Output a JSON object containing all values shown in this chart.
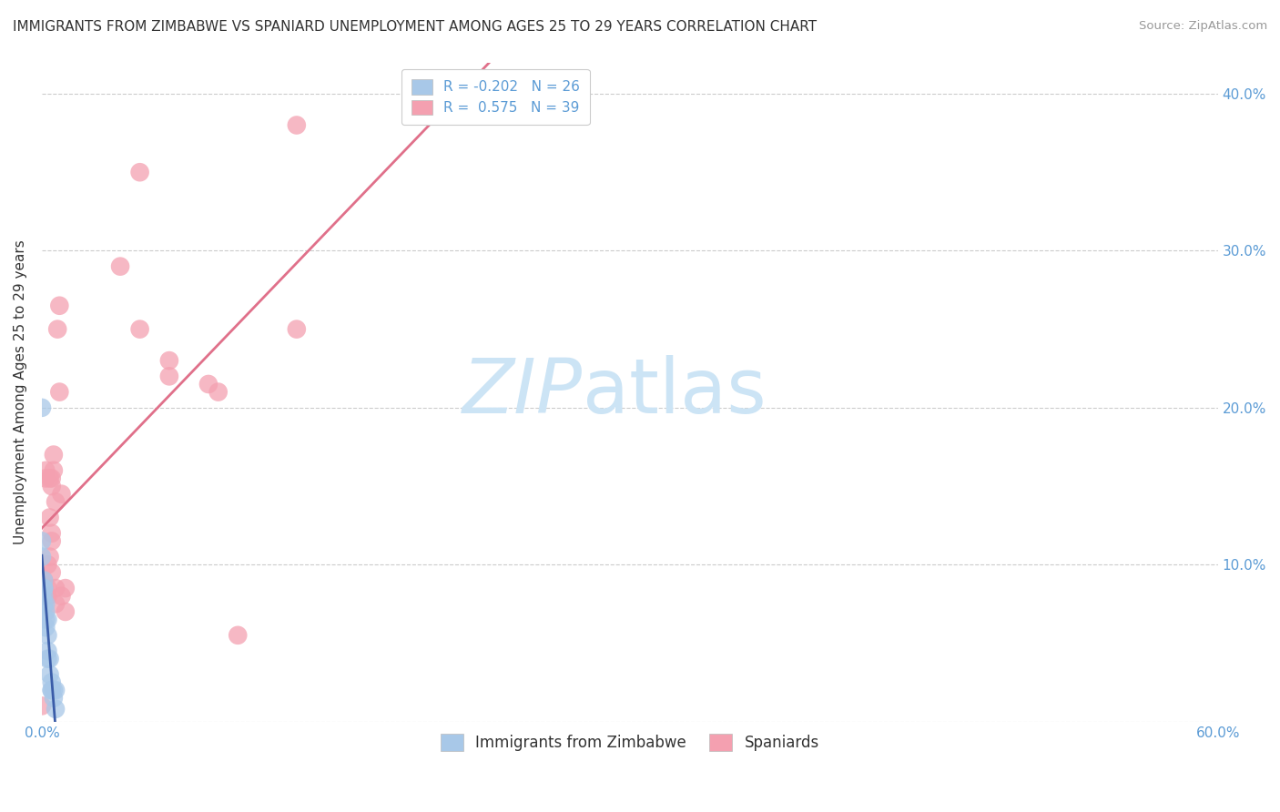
{
  "title": "IMMIGRANTS FROM ZIMBABWE VS SPANIARD UNEMPLOYMENT AMONG AGES 25 TO 29 YEARS CORRELATION CHART",
  "source": "Source: ZipAtlas.com",
  "ylabel": "Unemployment Among Ages 25 to 29 years",
  "watermark": "ZIPatlas",
  "xlim": [
    0.0,
    0.6
  ],
  "ylim": [
    0.0,
    0.42
  ],
  "xticks": [
    0.0,
    0.1,
    0.2,
    0.3,
    0.4,
    0.5,
    0.6
  ],
  "xtick_labels": [
    "0.0%",
    "",
    "",
    "",
    "",
    "",
    "60.0%"
  ],
  "yticks": [
    0.0,
    0.1,
    0.2,
    0.3,
    0.4
  ],
  "ytick_labels_right": [
    "",
    "10.0%",
    "20.0%",
    "30.0%",
    "40.0%"
  ],
  "legend1_labels": [
    "R = -0.202   N = 26",
    "R =  0.575   N = 39"
  ],
  "legend2_labels": [
    "Immigrants from Zimbabwe",
    "Spaniards"
  ],
  "blue_points_x": [
    0.0,
    0.0,
    0.0,
    0.001,
    0.001,
    0.001,
    0.001,
    0.001,
    0.002,
    0.002,
    0.002,
    0.003,
    0.003,
    0.003,
    0.003,
    0.004,
    0.004,
    0.005,
    0.005,
    0.005,
    0.006,
    0.006,
    0.007,
    0.007,
    0.0,
    0.002
  ],
  "blue_points_y": [
    0.2,
    0.115,
    0.105,
    0.09,
    0.085,
    0.085,
    0.08,
    0.075,
    0.075,
    0.07,
    0.065,
    0.065,
    0.055,
    0.045,
    0.04,
    0.04,
    0.03,
    0.025,
    0.02,
    0.02,
    0.02,
    0.015,
    0.02,
    0.008,
    0.08,
    0.06
  ],
  "pink_points_x": [
    0.001,
    0.001,
    0.001,
    0.002,
    0.002,
    0.003,
    0.003,
    0.003,
    0.004,
    0.004,
    0.004,
    0.005,
    0.005,
    0.005,
    0.005,
    0.005,
    0.006,
    0.006,
    0.007,
    0.007,
    0.007,
    0.008,
    0.009,
    0.009,
    0.01,
    0.01,
    0.012,
    0.012,
    0.04,
    0.05,
    0.05,
    0.065,
    0.065,
    0.085,
    0.09,
    0.13,
    0.13,
    0.0,
    0.1
  ],
  "pink_points_y": [
    0.09,
    0.085,
    0.08,
    0.16,
    0.155,
    0.1,
    0.085,
    0.08,
    0.155,
    0.13,
    0.105,
    0.12,
    0.115,
    0.155,
    0.15,
    0.095,
    0.17,
    0.16,
    0.14,
    0.085,
    0.075,
    0.25,
    0.265,
    0.21,
    0.145,
    0.08,
    0.085,
    0.07,
    0.29,
    0.35,
    0.25,
    0.23,
    0.22,
    0.215,
    0.21,
    0.25,
    0.38,
    0.01,
    0.055
  ],
  "blue_line_color": "#3a5ca8",
  "blue_line_dash_color": "#aabbdd",
  "pink_line_color": "#e0708a",
  "blue_point_color": "#a8c8e8",
  "pink_point_color": "#f4a0b0",
  "background_color": "#ffffff",
  "grid_color": "#cccccc",
  "title_color": "#333333",
  "source_color": "#999999",
  "axis_tick_color": "#5b9bd5",
  "watermark_color": "#cce4f5",
  "watermark_fontsize": 60
}
